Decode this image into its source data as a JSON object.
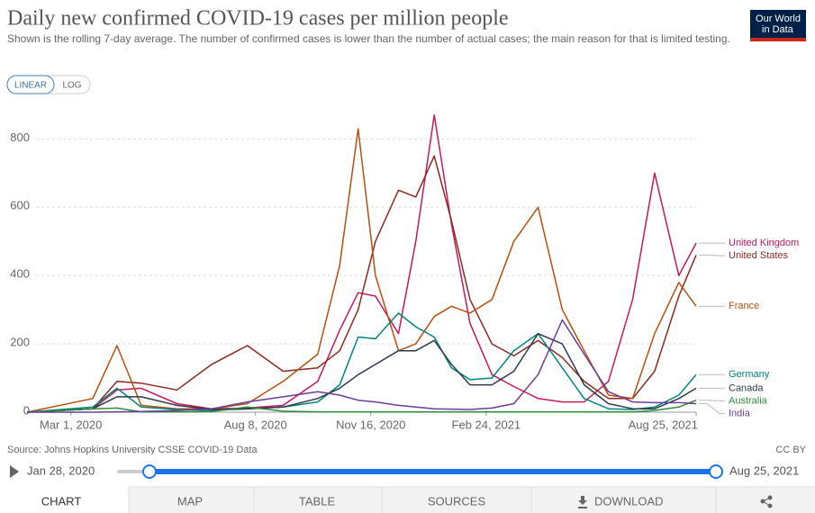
{
  "chart_data": {
    "type": "line",
    "title": "Daily new confirmed COVID-19 cases per million people",
    "subtitle": "Shown is the rolling 7-day average. The number of confirmed cases is lower than the number of actual cases; the main reason for that is limited testing.",
    "source": "Source: Johns Hopkins University CSSE COVID-19 Data",
    "license": "CC BY",
    "x": [
      "2020-01-23",
      "2020-03-20",
      "2020-04-10",
      "2020-05-01",
      "2020-06-01",
      "2020-07-01",
      "2020-08-01",
      "2020-09-01",
      "2020-10-01",
      "2020-10-20",
      "2020-11-05",
      "2020-11-20",
      "2020-12-10",
      "2020-12-25",
      "2021-01-10",
      "2021-01-25",
      "2021-02-10",
      "2021-03-01",
      "2021-03-20",
      "2021-04-10",
      "2021-05-01",
      "2021-05-20",
      "2021-06-10",
      "2021-07-01",
      "2021-07-20",
      "2021-08-10",
      "2021-08-25"
    ],
    "xlim": [
      "2020-01-23",
      "2021-08-25"
    ],
    "xticks": [
      {
        "value": "2020-03-01",
        "label": "Mar 1, 2020"
      },
      {
        "value": "2020-08-08",
        "label": "Aug 8, 2020"
      },
      {
        "value": "2020-11-16",
        "label": "Nov 16, 2020"
      },
      {
        "value": "2021-02-24",
        "label": "Feb 24, 2021"
      },
      {
        "value": "2021-08-25",
        "label": "Aug 25, 2021"
      }
    ],
    "ylim": [
      0,
      880
    ],
    "yticks": [
      0,
      200,
      400,
      600,
      800
    ],
    "grid": true,
    "series": [
      {
        "name": "United Kingdom",
        "color": "#c8175d",
        "values": [
          0,
          10,
          65,
          70,
          25,
          10,
          12,
          20,
          90,
          240,
          350,
          340,
          230,
          500,
          870,
          550,
          260,
          110,
          75,
          40,
          30,
          30,
          90,
          330,
          700,
          400,
          495
        ]
      },
      {
        "name": "United States",
        "color": "#8c2a1f",
        "values": [
          0,
          10,
          90,
          85,
          65,
          140,
          195,
          120,
          130,
          180,
          300,
          500,
          650,
          630,
          750,
          560,
          330,
          200,
          165,
          210,
          160,
          90,
          40,
          40,
          120,
          340,
          460
        ]
      },
      {
        "name": "France",
        "color": "#b5500f",
        "values": [
          0,
          40,
          195,
          20,
          10,
          10,
          25,
          90,
          170,
          430,
          830,
          400,
          180,
          200,
          280,
          310,
          290,
          330,
          500,
          600,
          300,
          180,
          50,
          40,
          230,
          380,
          310
        ]
      },
      {
        "name": "Germany",
        "color": "#00847e",
        "values": [
          0,
          15,
          70,
          15,
          8,
          5,
          10,
          15,
          30,
          80,
          220,
          215,
          290,
          250,
          220,
          130,
          95,
          100,
          180,
          230,
          130,
          40,
          10,
          8,
          15,
          50,
          110
        ]
      },
      {
        "name": "Canada",
        "color": "#2d3a4b",
        "values": [
          0,
          10,
          45,
          45,
          20,
          8,
          10,
          15,
          40,
          70,
          110,
          140,
          180,
          180,
          210,
          140,
          80,
          80,
          120,
          230,
          200,
          80,
          25,
          10,
          10,
          40,
          70
        ]
      },
      {
        "name": "Australia",
        "color": "#2c8c3c",
        "values": [
          0,
          10,
          12,
          1,
          1,
          2,
          15,
          3,
          1,
          1,
          1,
          1,
          1,
          1,
          1,
          1,
          1,
          1,
          1,
          1,
          1,
          1,
          1,
          1,
          5,
          15,
          35
        ]
      },
      {
        "name": "India",
        "color": "#6b3d9a",
        "values": [
          0,
          0,
          1,
          2,
          5,
          10,
          30,
          45,
          60,
          50,
          35,
          30,
          20,
          15,
          10,
          9,
          8,
          12,
          25,
          110,
          270,
          170,
          60,
          30,
          28,
          28,
          25
        ]
      }
    ]
  },
  "logo": [
    "Our World",
    "in Data"
  ],
  "scale_buttons": [
    "LINEAR",
    "LOG"
  ],
  "timeline": {
    "start": "Jan 28, 2020",
    "end": "Aug 25, 2021"
  },
  "tabs": [
    "CHART",
    "MAP",
    "TABLE",
    "SOURCES",
    "DOWNLOAD"
  ]
}
